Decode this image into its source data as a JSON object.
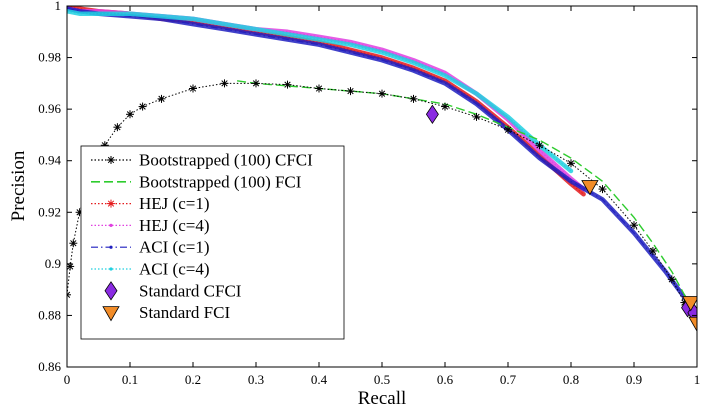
{
  "chart_data": {
    "type": "line",
    "title": "",
    "xlabel": "Recall",
    "ylabel": "Precision",
    "xlim": [
      0,
      1
    ],
    "ylim": [
      0.86,
      1.0
    ],
    "xticks": [
      0,
      0.1,
      0.2,
      0.3,
      0.4,
      0.5,
      0.6,
      0.7,
      0.8,
      0.9,
      1
    ],
    "xtick_labels": [
      "0",
      "0.1",
      "0.2",
      "0.3",
      "0.4",
      "0.5",
      "0.6",
      "0.7",
      "0.8",
      "0.9",
      "1"
    ],
    "yticks": [
      0.86,
      0.88,
      0.9,
      0.92,
      0.94,
      0.96,
      0.98,
      1.0
    ],
    "ytick_labels": [
      "0.86",
      "0.88",
      "0.9",
      "0.92",
      "0.94",
      "0.96",
      "0.98",
      "1"
    ],
    "grid": false,
    "legend_position": "bottom-left",
    "series": [
      {
        "name": "Bootstrapped (100) CFCI",
        "style": "dotted-star",
        "color": "#000000",
        "x": [
          0.0,
          0.005,
          0.01,
          0.02,
          0.03,
          0.04,
          0.06,
          0.08,
          0.1,
          0.12,
          0.15,
          0.2,
          0.25,
          0.3,
          0.35,
          0.4,
          0.45,
          0.5,
          0.55,
          0.6,
          0.65,
          0.7,
          0.75,
          0.8,
          0.85,
          0.9,
          0.93,
          0.96,
          0.98,
          1.0
        ],
        "y": [
          0.888,
          0.899,
          0.908,
          0.92,
          0.928,
          0.936,
          0.946,
          0.953,
          0.958,
          0.961,
          0.964,
          0.968,
          0.97,
          0.97,
          0.9695,
          0.968,
          0.967,
          0.966,
          0.964,
          0.961,
          0.957,
          0.952,
          0.946,
          0.939,
          0.929,
          0.915,
          0.905,
          0.894,
          0.885,
          0.879
        ]
      },
      {
        "name": "Bootstrapped (100) FCI",
        "style": "dashed",
        "color": "#2ecc2e",
        "x": [
          0.27,
          0.3,
          0.35,
          0.4,
          0.45,
          0.5,
          0.55,
          0.6,
          0.65,
          0.7,
          0.75,
          0.8,
          0.85,
          0.9,
          0.93,
          0.96,
          0.98,
          1.0
        ],
        "y": [
          0.971,
          0.97,
          0.969,
          0.968,
          0.967,
          0.966,
          0.964,
          0.962,
          0.958,
          0.953,
          0.948,
          0.941,
          0.932,
          0.918,
          0.908,
          0.897,
          0.888,
          0.88
        ]
      },
      {
        "name": "HEJ (c=1)",
        "style": "dotted-star",
        "color": "#e41a1c",
        "x": [
          0.0,
          0.02,
          0.05,
          0.1,
          0.15,
          0.2,
          0.25,
          0.3,
          0.35,
          0.4,
          0.45,
          0.5,
          0.55,
          0.6,
          0.65,
          0.7,
          0.75,
          0.8,
          0.82
        ],
        "y": [
          1.0,
          0.999,
          0.998,
          0.997,
          0.995,
          0.994,
          0.992,
          0.99,
          0.988,
          0.986,
          0.983,
          0.98,
          0.976,
          0.971,
          0.963,
          0.953,
          0.942,
          0.931,
          0.927
        ]
      },
      {
        "name": "HEJ (c=4)",
        "style": "dotted",
        "color": "#e040e0",
        "x": [
          0.0,
          0.02,
          0.05,
          0.1,
          0.15,
          0.2,
          0.25,
          0.3,
          0.35,
          0.4,
          0.45,
          0.5,
          0.55,
          0.6,
          0.65,
          0.7,
          0.75,
          0.8,
          0.82
        ],
        "y": [
          0.999,
          0.998,
          0.998,
          0.997,
          0.996,
          0.995,
          0.993,
          0.991,
          0.99,
          0.988,
          0.986,
          0.983,
          0.979,
          0.974,
          0.966,
          0.956,
          0.944,
          0.933,
          0.929
        ]
      },
      {
        "name": "ACI (c=1)",
        "style": "dash-dot",
        "color": "#1f1fbf",
        "x": [
          0.0,
          0.02,
          0.05,
          0.1,
          0.15,
          0.2,
          0.25,
          0.3,
          0.35,
          0.4,
          0.45,
          0.5,
          0.55,
          0.6,
          0.65,
          0.7,
          0.75,
          0.8,
          0.85,
          0.9,
          0.95,
          0.98,
          1.0
        ],
        "y": [
          0.999,
          0.998,
          0.997,
          0.996,
          0.995,
          0.993,
          0.991,
          0.989,
          0.987,
          0.985,
          0.982,
          0.979,
          0.975,
          0.97,
          0.962,
          0.952,
          0.941,
          0.932,
          0.925,
          0.912,
          0.897,
          0.887,
          0.881
        ]
      },
      {
        "name": "ACI (c=4)",
        "style": "dotted",
        "color": "#20d0e0",
        "x": [
          0.0,
          0.02,
          0.05,
          0.1,
          0.15,
          0.2,
          0.25,
          0.3,
          0.35,
          0.4,
          0.45,
          0.5,
          0.55,
          0.6,
          0.65,
          0.7,
          0.75,
          0.8
        ],
        "y": [
          0.998,
          0.997,
          0.997,
          0.997,
          0.996,
          0.995,
          0.993,
          0.991,
          0.989,
          0.987,
          0.985,
          0.982,
          0.978,
          0.973,
          0.966,
          0.957,
          0.946,
          0.936
        ]
      },
      {
        "name": "Standard CFCI",
        "style": "marker-diamond",
        "color": "#8a2be2",
        "x": [
          0.58,
          0.985,
          0.995
        ],
        "y": [
          0.958,
          0.883,
          0.881
        ]
      },
      {
        "name": "Standard FCI",
        "style": "marker-triangle-down",
        "color": "#f28c28",
        "x": [
          0.83,
          0.99,
          1.0
        ],
        "y": [
          0.93,
          0.885,
          0.877
        ]
      }
    ]
  }
}
